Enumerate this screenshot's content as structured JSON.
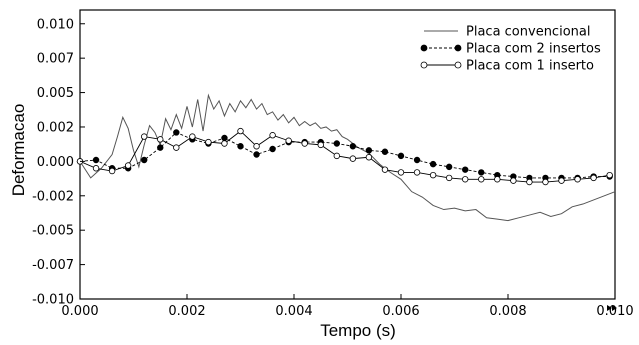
{
  "chart_data": {
    "type": "line",
    "xlabel": "Tempo (s)",
    "ylabel": "Deformacao",
    "xlim": [
      0.0,
      0.01
    ],
    "ylim": [
      -0.01,
      0.011
    ],
    "xticks": [
      0.0,
      0.002,
      0.004,
      0.006,
      0.008,
      0.01
    ],
    "xtick_labels": [
      "0.000",
      "0.002",
      "0.004",
      "0.006",
      "0.008",
      "0.010"
    ],
    "yticks": [
      0.01,
      0.0075,
      0.005,
      0.0025,
      0.0,
      -0.0025,
      -0.005,
      -0.0075,
      -0.01
    ],
    "ytick_labels": [
      "0.010",
      "0.007",
      "0.005",
      "0.002",
      "0.000",
      "-0.002",
      "-0.005",
      "-0.007",
      "-0.010"
    ],
    "grid": false,
    "legend_position": "top-right",
    "series": [
      {
        "name": "Placa convencional",
        "style": "solid",
        "marker": "none",
        "color": "#555555",
        "x": [
          0.0,
          0.0002,
          0.0004,
          0.0006,
          0.0007,
          0.0008,
          0.0009,
          0.001,
          0.0011,
          0.0012,
          0.0013,
          0.0014,
          0.0015,
          0.0016,
          0.0017,
          0.0018,
          0.0019,
          0.002,
          0.0021,
          0.0022,
          0.0023,
          0.0024,
          0.0025,
          0.0026,
          0.0027,
          0.0028,
          0.0029,
          0.003,
          0.0031,
          0.0032,
          0.0033,
          0.0034,
          0.0035,
          0.0036,
          0.0037,
          0.0038,
          0.0039,
          0.004,
          0.0041,
          0.0042,
          0.0043,
          0.0044,
          0.0045,
          0.0046,
          0.0047,
          0.0048,
          0.0049,
          0.005,
          0.0052,
          0.0054,
          0.0056,
          0.0058,
          0.006,
          0.0062,
          0.0064,
          0.0066,
          0.0068,
          0.007,
          0.0072,
          0.0074,
          0.0076,
          0.0078,
          0.008,
          0.0082,
          0.0084,
          0.0086,
          0.0088,
          0.009,
          0.0092,
          0.0094,
          0.0096,
          0.0098,
          0.01
        ],
        "y": [
          0.0,
          -0.0012,
          -0.0005,
          0.0005,
          0.0018,
          0.0032,
          0.0024,
          0.0008,
          -0.0004,
          0.0012,
          0.0026,
          0.0021,
          0.0012,
          0.0031,
          0.0023,
          0.0034,
          0.0024,
          0.004,
          0.0025,
          0.0045,
          0.0022,
          0.0048,
          0.0038,
          0.0044,
          0.0033,
          0.0042,
          0.0036,
          0.0044,
          0.0039,
          0.0045,
          0.0038,
          0.0042,
          0.0034,
          0.0036,
          0.003,
          0.0034,
          0.0028,
          0.0032,
          0.0026,
          0.0029,
          0.0026,
          0.0028,
          0.0024,
          0.0025,
          0.0022,
          0.0023,
          0.0018,
          0.0016,
          0.001,
          0.0006,
          -0.0002,
          -0.0008,
          -0.0013,
          -0.0022,
          -0.0026,
          -0.0032,
          -0.0035,
          -0.0034,
          -0.0036,
          -0.0035,
          -0.0041,
          -0.0042,
          -0.0043,
          -0.0041,
          -0.0039,
          -0.0037,
          -0.004,
          -0.0038,
          -0.0033,
          -0.0031,
          -0.0028,
          -0.0025,
          -0.0022
        ]
      },
      {
        "name": "Placa com 2 insertos",
        "style": "dashed",
        "marker": "filled-circle",
        "color": "#000000",
        "x": [
          0.0,
          0.0003,
          0.0006,
          0.0009,
          0.0012,
          0.0015,
          0.0018,
          0.0021,
          0.0024,
          0.0027,
          0.003,
          0.0033,
          0.0036,
          0.0039,
          0.0042,
          0.0045,
          0.0048,
          0.0051,
          0.0054,
          0.0057,
          0.006,
          0.0063,
          0.0066,
          0.0069,
          0.0072,
          0.0075,
          0.0078,
          0.0081,
          0.0084,
          0.0087,
          0.009,
          0.0093,
          0.0096,
          0.0099
        ],
        "y": [
          0.0,
          0.0001,
          -0.0005,
          -0.0005,
          0.0001,
          0.001,
          0.0021,
          0.0016,
          0.0013,
          0.0017,
          0.0011,
          0.0005,
          0.0009,
          0.0014,
          0.0014,
          0.0014,
          0.0013,
          0.0011,
          0.0008,
          0.0007,
          0.0004,
          0.0001,
          -0.0002,
          -0.0004,
          -0.0006,
          -0.0008,
          -0.001,
          -0.0011,
          -0.0012,
          -0.0012,
          -0.0012,
          -0.0012,
          -0.0011,
          -0.0011
        ]
      },
      {
        "name": "Placa com 1 inserto",
        "style": "solid",
        "marker": "open-circle",
        "color": "#000000",
        "x": [
          0.0,
          0.0003,
          0.0006,
          0.0009,
          0.0012,
          0.0015,
          0.0018,
          0.0021,
          0.0024,
          0.0027,
          0.003,
          0.0033,
          0.0036,
          0.0039,
          0.0042,
          0.0045,
          0.0048,
          0.0051,
          0.0054,
          0.0057,
          0.006,
          0.0063,
          0.0066,
          0.0069,
          0.0072,
          0.0075,
          0.0078,
          0.0081,
          0.0084,
          0.0087,
          0.009,
          0.0093,
          0.0096,
          0.0099
        ],
        "y": [
          0.0,
          -0.0005,
          -0.0007,
          -0.0003,
          0.0018,
          0.0016,
          0.001,
          0.0018,
          0.0014,
          0.0013,
          0.0022,
          0.0011,
          0.0019,
          0.0015,
          0.0013,
          0.0012,
          0.0004,
          0.0002,
          0.0003,
          -0.0006,
          -0.0008,
          -0.0008,
          -0.001,
          -0.0012,
          -0.0013,
          -0.0013,
          -0.0013,
          -0.0014,
          -0.0015,
          -0.0015,
          -0.0014,
          -0.0013,
          -0.0012,
          -0.001
        ]
      }
    ]
  }
}
